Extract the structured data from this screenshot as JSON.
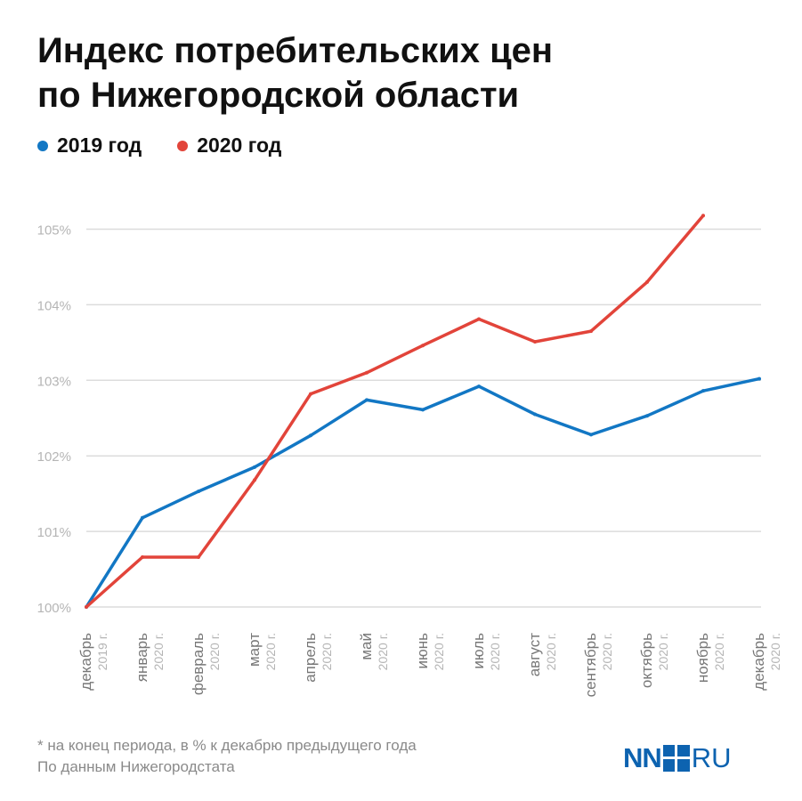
{
  "title_line1": "Индекс потребительских цен",
  "title_line2": "по Нижегородской области",
  "footnote_line1": "* на конец периода, в % к декабрю предыдущего года",
  "footnote_line2": "По данным Нижегородстата",
  "logo": {
    "left": "NN",
    "right": "RU"
  },
  "colors": {
    "series_2019": "#1277c4",
    "series_2020": "#e2443a",
    "grid": "#dcdcdc",
    "tick": "#b5b5b5",
    "month": "#777777"
  },
  "chart_data": {
    "type": "line",
    "title": "Индекс потребительских цен по Нижегородской области",
    "ylim": [
      100,
      105.3
    ],
    "yticks": [
      100,
      101,
      102,
      103,
      104,
      105
    ],
    "ytick_labels": [
      "100%",
      "101%",
      "102%",
      "103%",
      "104%",
      "105%"
    ],
    "grid": true,
    "legend_position": "top-left",
    "categories": [
      {
        "month": "декабрь",
        "year": "2019 г."
      },
      {
        "month": "январь",
        "year": "2020 г."
      },
      {
        "month": "февраль",
        "year": "2020 г."
      },
      {
        "month": "март",
        "year": "2020 г."
      },
      {
        "month": "апрель",
        "year": "2020 г."
      },
      {
        "month": "май",
        "year": "2020 г."
      },
      {
        "month": "июнь",
        "year": "2020 г."
      },
      {
        "month": "июль",
        "year": "2020 г."
      },
      {
        "month": "август",
        "year": "2020 г."
      },
      {
        "month": "сентябрь",
        "year": "2020 г."
      },
      {
        "month": "октябрь",
        "year": "2020 г."
      },
      {
        "month": "ноябрь",
        "year": "2020 г."
      },
      {
        "month": "декабрь",
        "year": "2020 г."
      }
    ],
    "series": [
      {
        "name": "2019 год",
        "color": "#1277c4",
        "values": [
          100.0,
          101.18,
          101.53,
          101.85,
          102.27,
          102.74,
          102.61,
          102.92,
          102.55,
          102.28,
          102.53,
          102.86,
          103.02
        ]
      },
      {
        "name": "2020 год",
        "color": "#e2443a",
        "values": [
          100.0,
          100.66,
          100.66,
          101.68,
          102.82,
          103.1,
          103.46,
          103.81,
          103.51,
          103.65,
          104.3,
          105.18,
          null
        ]
      }
    ]
  }
}
